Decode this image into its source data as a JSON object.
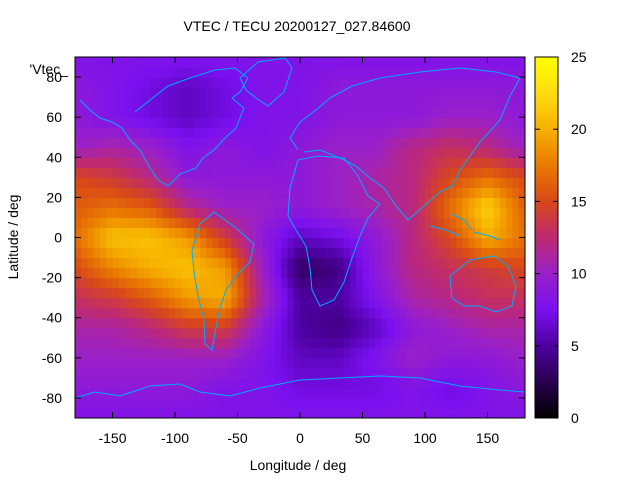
{
  "chart_data": {
    "type": "heatmap",
    "title": "VTEC / TECU 20200127_027.84600",
    "xlabel": "Longitude / deg",
    "ylabel": "Latitude / deg",
    "series_label": "'Vtec_",
    "xlim": [
      -180,
      180
    ],
    "ylim": [
      -90,
      90
    ],
    "xticks": [
      -150,
      -100,
      -50,
      0,
      50,
      100,
      150
    ],
    "yticks": [
      -80,
      -60,
      -40,
      -20,
      0,
      20,
      40,
      60,
      80
    ],
    "colorbar": {
      "min": 0,
      "max": 25,
      "ticks": [
        0,
        5,
        10,
        15,
        20,
        25
      ]
    },
    "colormap": [
      "#000000",
      "#2a0050",
      "#4d00a0",
      "#7a10f0",
      "#9a20c8",
      "#bf2a70",
      "#d84818",
      "#ea7a00",
      "#f6b000",
      "#ffdc10",
      "#ffff00"
    ],
    "coastline_color": "#00aaff",
    "grid": false,
    "lon": [
      -180,
      -150,
      -120,
      -90,
      -60,
      -30,
      0,
      30,
      60,
      90,
      120,
      150,
      180
    ],
    "lat": [
      -90,
      -75,
      -60,
      -45,
      -30,
      -15,
      0,
      15,
      30,
      45,
      60,
      75,
      90
    ],
    "values": [
      [
        8,
        8,
        8,
        8,
        8,
        8,
        8,
        8,
        8,
        8,
        8,
        8,
        8
      ],
      [
        9,
        9,
        9,
        9,
        8,
        8,
        7,
        7,
        7,
        8,
        7,
        8,
        9
      ],
      [
        10,
        10,
        10,
        10,
        10,
        8,
        6,
        6,
        8,
        10,
        9,
        9,
        10
      ],
      [
        11,
        11,
        12,
        14,
        14,
        9,
        5,
        4,
        6,
        9,
        10,
        11,
        11
      ],
      [
        13,
        14,
        16,
        19,
        20,
        11,
        5,
        5,
        8,
        11,
        12,
        13,
        13
      ],
      [
        15,
        18,
        20,
        21,
        19,
        10,
        3,
        4,
        9,
        12,
        13,
        14,
        15
      ],
      [
        17,
        21,
        21,
        19,
        14,
        9,
        6,
        7,
        9,
        12,
        15,
        20,
        17
      ],
      [
        16,
        17,
        16,
        12,
        10,
        10,
        9,
        10,
        11,
        12,
        17,
        22,
        16
      ],
      [
        15,
        14,
        12,
        9,
        9,
        9,
        9,
        10,
        11,
        12,
        15,
        17,
        15
      ],
      [
        10,
        11,
        10,
        8,
        9,
        8,
        9,
        10,
        10,
        12,
        13,
        12,
        10
      ],
      [
        9,
        8,
        7,
        6,
        7,
        8,
        8,
        9,
        9,
        9,
        10,
        10,
        9
      ],
      [
        9,
        8,
        7,
        6,
        7,
        8,
        8,
        9,
        9,
        9,
        9,
        9,
        9
      ],
      [
        8,
        8,
        8,
        8,
        8,
        8,
        8,
        8,
        8,
        8,
        8,
        8,
        8
      ]
    ]
  }
}
